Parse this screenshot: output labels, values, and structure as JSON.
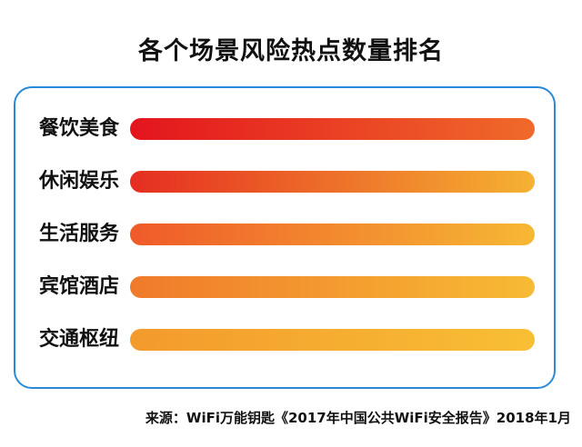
{
  "chart_data": {
    "type": "bar",
    "orientation": "horizontal",
    "title": "各个场景风险热点数量排名",
    "categories": [
      "餐饮美食",
      "休闲娱乐",
      "生活服务",
      "宾馆酒店",
      "交通枢纽"
    ],
    "values": [
      1,
      1,
      1,
      1,
      1
    ],
    "rank": [
      1,
      2,
      3,
      4,
      5
    ],
    "value_axis_shown": false,
    "grid": false,
    "legend": "none",
    "bar_gradients": [
      [
        "#e3151d",
        "#f06a2a"
      ],
      [
        "#e52d21",
        "#f5b232"
      ],
      [
        "#ef5a29",
        "#f6b834"
      ],
      [
        "#f07a2b",
        "#f7bb34"
      ],
      [
        "#f39a2d",
        "#f8bf34"
      ]
    ]
  },
  "source": "来源：WiFi万能钥匙《2017年中国公共WiFi安全报告》2018年1月",
  "colors": {
    "frame_border": "#2b8ad6",
    "text": "#111111",
    "background": "#ffffff"
  }
}
